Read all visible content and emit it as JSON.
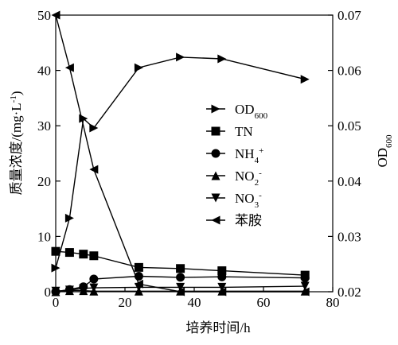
{
  "chart_data": {
    "type": "line",
    "title": "",
    "xlabel": "培养时间/h",
    "ylabel_left": "质量浓度/(mg·L⁻¹)",
    "ylabel_right": "OD600",
    "xlim": [
      0,
      80
    ],
    "ylim_left": [
      0,
      50
    ],
    "ylim_right": [
      0.02,
      0.07
    ],
    "xticks": [
      0,
      20,
      40,
      60,
      80
    ],
    "yticks_left": [
      0,
      10,
      20,
      30,
      40,
      50
    ],
    "yticks_right": [
      0.02,
      0.03,
      0.04,
      0.05,
      0.06,
      0.07
    ],
    "grid": false,
    "legend_position": "center-right",
    "series": [
      {
        "name": "OD600",
        "axis": "right",
        "marker": "triangle-right",
        "x": [
          0,
          4,
          8,
          11,
          24,
          36,
          48,
          72
        ],
        "y": [
          0.0243,
          0.0333,
          0.0513,
          0.0496,
          0.0605,
          0.0624,
          0.0621,
          0.0584
        ]
      },
      {
        "name": "TN",
        "axis": "left",
        "marker": "square",
        "x": [
          0,
          4,
          8,
          11,
          24,
          36,
          48,
          72
        ],
        "y": [
          7.3,
          7.1,
          6.8,
          6.5,
          4.4,
          4.2,
          3.8,
          3.0
        ]
      },
      {
        "name": "NH4+",
        "axis": "left",
        "marker": "circle",
        "x": [
          0,
          4,
          8,
          11,
          24,
          36,
          48,
          72
        ],
        "y": [
          0.0,
          0.4,
          0.9,
          2.3,
          2.8,
          2.6,
          2.7,
          2.5
        ]
      },
      {
        "name": "NO2-",
        "axis": "left",
        "marker": "triangle-up",
        "x": [
          0,
          4,
          8,
          11,
          24,
          36,
          48,
          72
        ],
        "y": [
          0.0,
          0.2,
          0.2,
          0.1,
          0.1,
          0.1,
          0.1,
          0.1
        ]
      },
      {
        "name": "NO3-",
        "axis": "left",
        "marker": "triangle-down",
        "x": [
          0,
          4,
          8,
          11,
          24,
          36,
          48,
          72
        ],
        "y": [
          0.1,
          0.3,
          0.6,
          0.7,
          0.8,
          0.8,
          0.8,
          1.0
        ]
      },
      {
        "name": "苯胺",
        "axis": "left",
        "marker": "triangle-left",
        "x": [
          0,
          4,
          11,
          24,
          36,
          48,
          72
        ],
        "y": [
          50.0,
          40.5,
          22.1,
          1.4,
          0.0,
          0.0,
          0.0
        ]
      }
    ]
  },
  "legend": [
    {
      "marker": "triangle-right",
      "main": "OD",
      "sub": "600",
      "sup": ""
    },
    {
      "marker": "square",
      "main": "TN",
      "sub": "",
      "sup": ""
    },
    {
      "marker": "circle",
      "main": "NH",
      "sub": "4",
      "sup": "+"
    },
    {
      "marker": "triangle-up",
      "main": "NO",
      "sub": "2",
      "sup": "-"
    },
    {
      "marker": "triangle-down",
      "main": "NO",
      "sub": "3",
      "sup": "-"
    },
    {
      "marker": "triangle-left",
      "main": "苯胺",
      "sub": "",
      "sup": ""
    }
  ],
  "axis_labels": {
    "x": "培养时间/h",
    "left_main": "质量浓度/(mg·L",
    "left_sup": "-1",
    "left_close": ")",
    "right_main": "OD",
    "right_sub": "600"
  }
}
